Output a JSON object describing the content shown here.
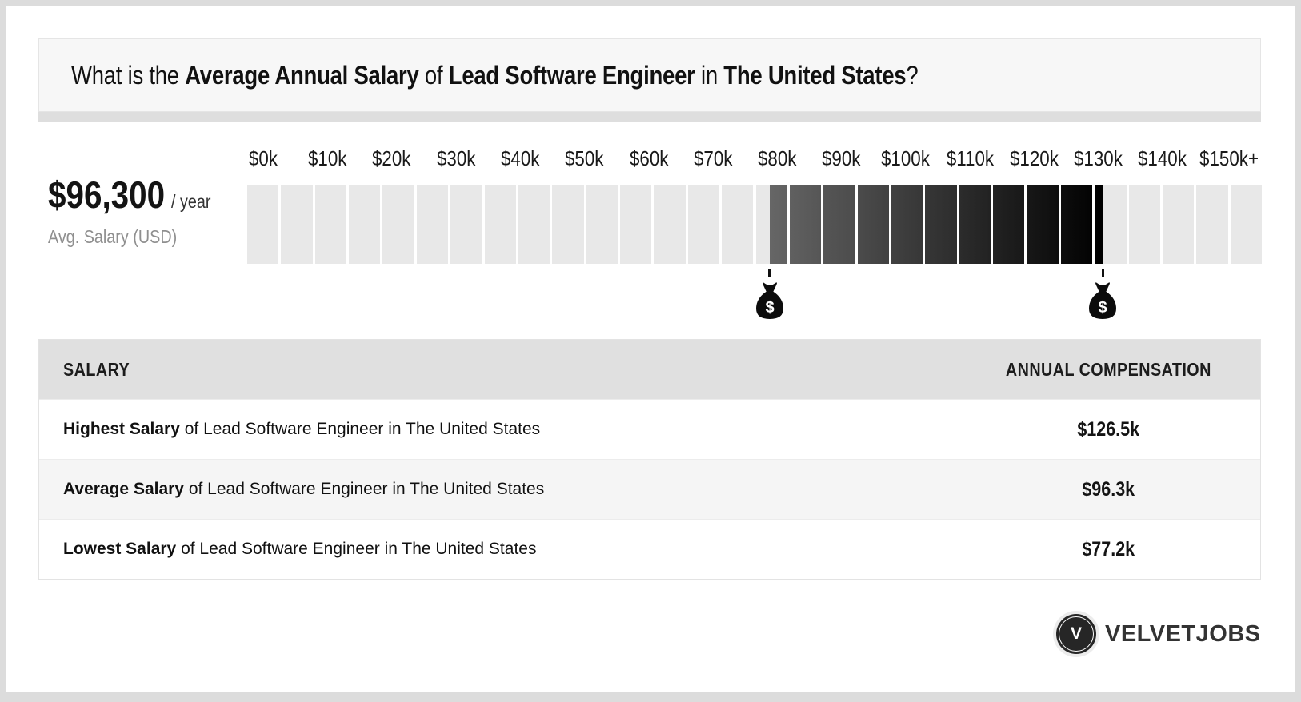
{
  "title": {
    "segments": [
      {
        "text": "What is the ",
        "bold": false
      },
      {
        "text": "Average Annual Salary",
        "bold": true
      },
      {
        "text": " of ",
        "bold": false
      },
      {
        "text": "Lead Software Engineer",
        "bold": true
      },
      {
        "text": " in ",
        "bold": false
      },
      {
        "text": "The United States",
        "bold": true
      },
      {
        "text": "?",
        "bold": false
      }
    ]
  },
  "summary": {
    "amount": "$96,300",
    "per": "/ year",
    "caption": "Avg. Salary (USD)"
  },
  "chart_data": {
    "type": "bar",
    "subtype": "salary-range-gauge",
    "title": "Salary range gauge for Lead Software Engineer in The United States",
    "axis_labels": [
      "$0k",
      "$10k",
      "$20k",
      "$30k",
      "$40k",
      "$50k",
      "$60k",
      "$70k",
      "$80k",
      "$90k",
      "$100k",
      "$110k",
      "$120k",
      "$130k",
      "$140k",
      "$150k+"
    ],
    "axis_min_k": 0,
    "axis_max_k": 150,
    "segment_count": 30,
    "segment_value_k": 5,
    "track_color": "#e8e8e8",
    "gap_color": "#ffffff",
    "highlight_range_k": [
      77.2,
      126.5
    ],
    "highlight_gradient": [
      "#666666",
      "#000000"
    ],
    "markers_k": [
      77.2,
      126.5
    ],
    "marker_icon": "money-bag-icon",
    "values_k": {
      "lowest": 77.2,
      "average": 96.3,
      "highest": 126.5
    }
  },
  "table": {
    "headers": [
      "SALARY",
      "ANNUAL COMPENSATION"
    ],
    "rows": [
      {
        "label_bold": "Highest Salary",
        "label_rest": " of Lead Software Engineer in The United States",
        "value": "$126.5k"
      },
      {
        "label_bold": "Average Salary",
        "label_rest": " of Lead Software Engineer in The United States",
        "value": "$96.3k"
      },
      {
        "label_bold": "Lowest Salary",
        "label_rest": " of Lead Software Engineer in The United States",
        "value": "$77.2k"
      }
    ]
  },
  "logo": {
    "monogram": "V",
    "text": "VELVETJOBS"
  },
  "colors": {
    "page_border": "#dcdcdc",
    "card_bg": "#ffffff",
    "title_box_bg": "#f7f7f7",
    "title_band": "#dedede",
    "table_header_bg": "#e0e0e0",
    "row_alt_bg": "#f5f5f5",
    "caption_gray": "#8f8f8f"
  }
}
